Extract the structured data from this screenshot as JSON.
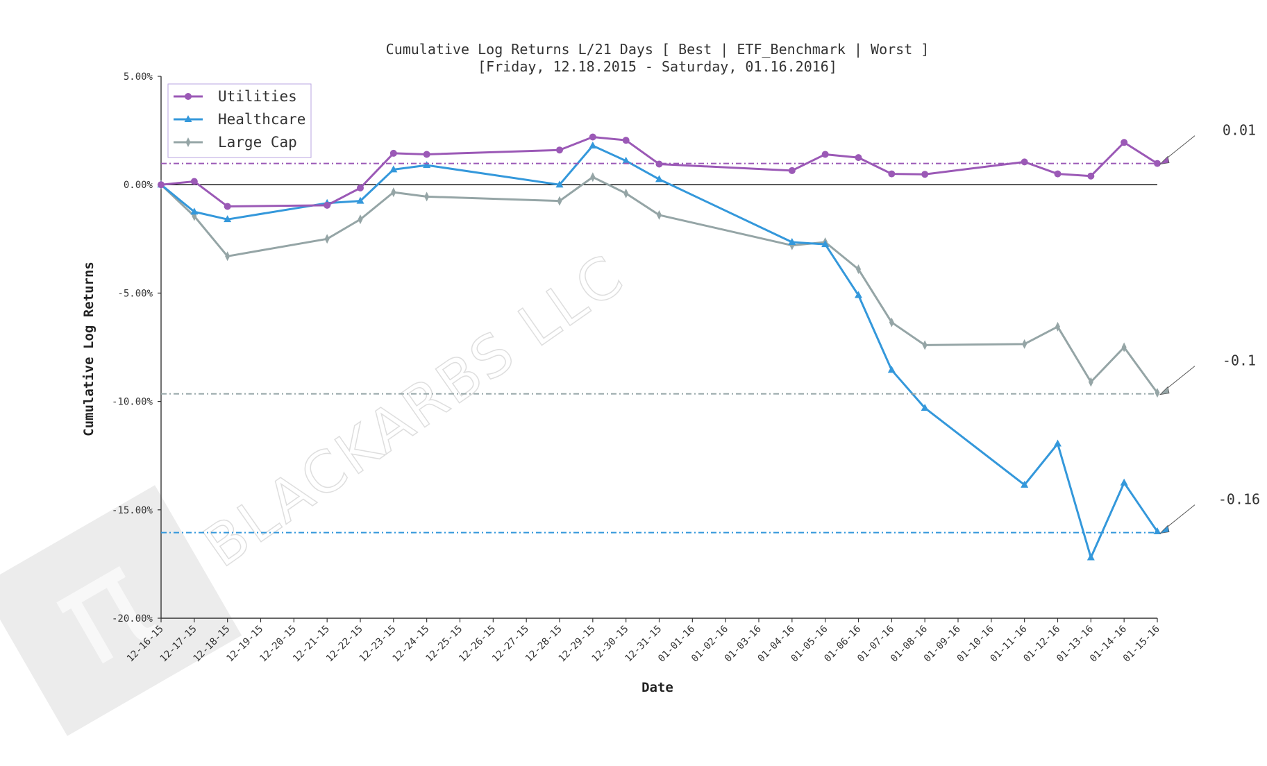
{
  "chart_data": {
    "type": "line",
    "title": "Cumulative Log Returns L/21 Days [ Best | ETF_Benchmark | Worst ]",
    "subtitle": "[Friday, 12.18.2015 - Saturday, 01.16.2016]",
    "xlabel": "Date",
    "ylabel": "Cumulative Log Returns",
    "ylim": [
      -0.2,
      0.05
    ],
    "yticks": [
      {
        "value": 0.05,
        "label": "5.00%"
      },
      {
        "value": 0.0,
        "label": "0.00%"
      },
      {
        "value": -0.05,
        "label": "-5.00%"
      },
      {
        "value": -0.1,
        "label": "-10.00%"
      },
      {
        "value": -0.15,
        "label": "-15.00%"
      },
      {
        "value": -0.2,
        "label": "-20.00%"
      }
    ],
    "categories": [
      "12-16-15",
      "12-17-15",
      "12-18-15",
      "12-19-15",
      "12-20-15",
      "12-21-15",
      "12-22-15",
      "12-23-15",
      "12-24-15",
      "12-25-15",
      "12-26-15",
      "12-27-15",
      "12-28-15",
      "12-29-15",
      "12-30-15",
      "12-31-15",
      "01-01-16",
      "01-02-16",
      "01-03-16",
      "01-04-16",
      "01-05-16",
      "01-06-16",
      "01-07-16",
      "01-08-16",
      "01-09-16",
      "01-10-16",
      "01-11-16",
      "01-12-16",
      "01-13-16",
      "01-14-16",
      "01-15-16"
    ],
    "legend_position": "top-left",
    "series": [
      {
        "name": "Utilities",
        "color": "#9b59b6",
        "marker": "circle",
        "points": [
          {
            "x": "12-16-15",
            "y": 0.0
          },
          {
            "x": "12-17-15",
            "y": 0.0015
          },
          {
            "x": "12-18-15",
            "y": -0.01
          },
          {
            "x": "12-21-15",
            "y": -0.0095
          },
          {
            "x": "12-22-15",
            "y": -0.0015
          },
          {
            "x": "12-23-15",
            "y": 0.0145
          },
          {
            "x": "12-24-15",
            "y": 0.014
          },
          {
            "x": "12-28-15",
            "y": 0.016
          },
          {
            "x": "12-29-15",
            "y": 0.022
          },
          {
            "x": "12-30-15",
            "y": 0.0205
          },
          {
            "x": "12-31-15",
            "y": 0.0095
          },
          {
            "x": "01-04-16",
            "y": 0.0065
          },
          {
            "x": "01-05-16",
            "y": 0.014
          },
          {
            "x": "01-06-16",
            "y": 0.0125
          },
          {
            "x": "01-07-16",
            "y": 0.005
          },
          {
            "x": "01-08-16",
            "y": 0.0048
          },
          {
            "x": "01-11-16",
            "y": 0.0105
          },
          {
            "x": "01-12-16",
            "y": 0.005
          },
          {
            "x": "01-13-16",
            "y": 0.004
          },
          {
            "x": "01-14-16",
            "y": 0.0195
          },
          {
            "x": "01-15-16",
            "y": 0.0098
          }
        ]
      },
      {
        "name": "Healthcare",
        "color": "#3498db",
        "marker": "triangle",
        "points": [
          {
            "x": "12-16-15",
            "y": 0.0
          },
          {
            "x": "12-17-15",
            "y": -0.0125
          },
          {
            "x": "12-18-15",
            "y": -0.016
          },
          {
            "x": "12-21-15",
            "y": -0.0085
          },
          {
            "x": "12-22-15",
            "y": -0.0075
          },
          {
            "x": "12-23-15",
            "y": 0.007
          },
          {
            "x": "12-24-15",
            "y": 0.009
          },
          {
            "x": "12-28-15",
            "y": 0.0
          },
          {
            "x": "12-29-15",
            "y": 0.018
          },
          {
            "x": "12-30-15",
            "y": 0.011
          },
          {
            "x": "12-31-15",
            "y": 0.0025
          },
          {
            "x": "01-04-16",
            "y": -0.0265
          },
          {
            "x": "01-05-16",
            "y": -0.0275
          },
          {
            "x": "01-06-16",
            "y": -0.051
          },
          {
            "x": "01-07-16",
            "y": -0.0855
          },
          {
            "x": "01-08-16",
            "y": -0.103
          },
          {
            "x": "01-11-16",
            "y": -0.1385
          },
          {
            "x": "01-12-16",
            "y": -0.1195
          },
          {
            "x": "01-13-16",
            "y": -0.172
          },
          {
            "x": "01-14-16",
            "y": -0.1375
          },
          {
            "x": "01-15-16",
            "y": -0.16
          }
        ]
      },
      {
        "name": "Large Cap",
        "color": "#95a5a6",
        "marker": "diamond",
        "points": [
          {
            "x": "12-16-15",
            "y": 0.0
          },
          {
            "x": "12-17-15",
            "y": -0.0145
          },
          {
            "x": "12-18-15",
            "y": -0.033
          },
          {
            "x": "12-21-15",
            "y": -0.025
          },
          {
            "x": "12-22-15",
            "y": -0.016
          },
          {
            "x": "12-23-15",
            "y": -0.0035
          },
          {
            "x": "12-24-15",
            "y": -0.0055
          },
          {
            "x": "12-28-15",
            "y": -0.0075
          },
          {
            "x": "12-29-15",
            "y": 0.0035
          },
          {
            "x": "12-30-15",
            "y": -0.004
          },
          {
            "x": "12-31-15",
            "y": -0.014
          },
          {
            "x": "01-04-16",
            "y": -0.028
          },
          {
            "x": "01-05-16",
            "y": -0.0265
          },
          {
            "x": "01-06-16",
            "y": -0.039
          },
          {
            "x": "01-07-16",
            "y": -0.0635
          },
          {
            "x": "01-08-16",
            "y": -0.074
          },
          {
            "x": "01-11-16",
            "y": -0.0735
          },
          {
            "x": "01-12-16",
            "y": -0.0655
          },
          {
            "x": "01-13-16",
            "y": -0.091
          },
          {
            "x": "01-14-16",
            "y": -0.075
          },
          {
            "x": "01-15-16",
            "y": -0.096
          }
        ]
      }
    ],
    "reference_lines": [
      {
        "series": "Utilities",
        "value": 0.0098,
        "label": "0.01",
        "color": "#9b59b6",
        "style": "dash-dot"
      },
      {
        "series": "Large Cap",
        "value": -0.0965,
        "label": "-0.1",
        "color": "#95a5a6",
        "style": "dash-dot"
      },
      {
        "series": "Healthcare",
        "value": -0.1605,
        "label": "-0.16",
        "color": "#3498db",
        "style": "dash-dot"
      }
    ],
    "watermark": "BLACKARBS LLC"
  }
}
